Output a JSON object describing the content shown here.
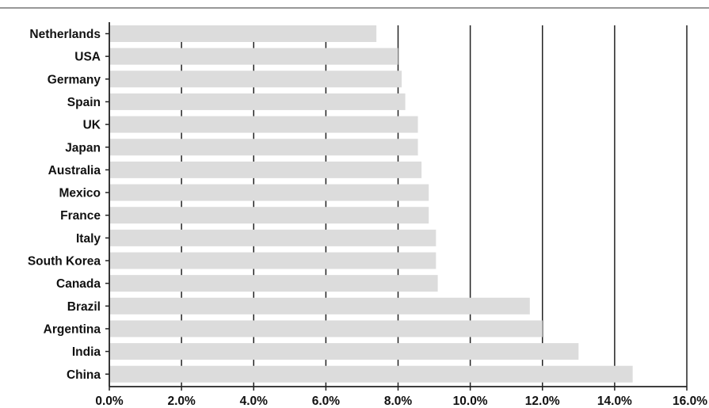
{
  "chart_data": {
    "type": "bar",
    "orientation": "horizontal",
    "title": "",
    "xlabel": "",
    "ylabel": "",
    "categories": [
      "Netherlands",
      "USA",
      "Germany",
      "Spain",
      "UK",
      "Japan",
      "Australia",
      "Mexico",
      "France",
      "Italy",
      "South Korea",
      "Canada",
      "Brazil",
      "Argentina",
      "India",
      "China"
    ],
    "values": [
      7.4,
      8.0,
      8.1,
      8.2,
      8.55,
      8.55,
      8.65,
      8.85,
      8.85,
      9.05,
      9.05,
      9.1,
      11.65,
      12.0,
      13.0,
      14.5
    ],
    "xlim": [
      0,
      16
    ],
    "ticks": [
      "0.0%",
      "2.0%",
      "4.0%",
      "6.0%",
      "8.0%",
      "10.0%",
      "12.0%",
      "14.0%",
      "16.0%"
    ],
    "tick_values": [
      0,
      2,
      4,
      6,
      8,
      10,
      12,
      14,
      16
    ],
    "grid": true,
    "legend": "none",
    "colors": {
      "bar": "#dcdcdc",
      "grid": "#222222",
      "axis": "#222222",
      "rule": "#777777",
      "text": "#111111"
    }
  }
}
